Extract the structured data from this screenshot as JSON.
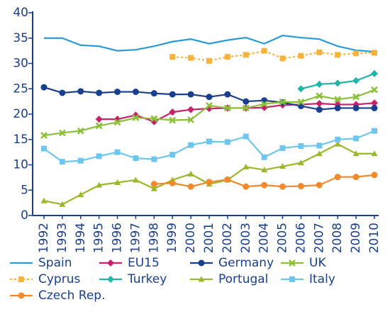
{
  "chart_data": {
    "type": "line",
    "categories": [
      "1992",
      "1993",
      "1994",
      "1995",
      "1996",
      "1997",
      "1998",
      "1999",
      "2000",
      "2001",
      "2002",
      "2003",
      "2004",
      "2005",
      "2006",
      "2007",
      "2008",
      "2009",
      "2010"
    ],
    "ylim": [
      0,
      40
    ],
    "yticks": [
      0,
      5,
      10,
      15,
      20,
      25,
      30,
      35,
      40
    ],
    "axis_color": "#1a3f8f",
    "series": [
      {
        "name": "Spain",
        "color": "#2b9ad6",
        "marker": "none",
        "dash": "solid",
        "values": [
          35,
          35,
          33.6,
          33.4,
          32.5,
          32.7,
          33.4,
          34.3,
          34.8,
          33.9,
          34.6,
          35.1,
          33.9,
          35.5,
          35.1,
          34.8,
          33.4,
          32.6,
          32.3
        ]
      },
      {
        "name": "EU15",
        "color": "#c8206a",
        "marker": "diamond",
        "dash": "solid",
        "values": [
          null,
          null,
          null,
          19,
          19,
          19.8,
          18.5,
          20.4,
          20.9,
          21.1,
          21.2,
          21.2,
          21.3,
          21.8,
          21.9,
          22.1,
          21.9,
          21.9,
          22.2
        ]
      },
      {
        "name": "Germany",
        "color": "#1a3f8f",
        "marker": "circle",
        "dash": "solid",
        "values": [
          25.3,
          24.2,
          24.5,
          24.2,
          24.4,
          24.4,
          24.1,
          23.9,
          23.9,
          23.4,
          23.9,
          22.5,
          22.7,
          22.3,
          21.6,
          20.9,
          21.2,
          21.2,
          21.2
        ]
      },
      {
        "name": "UK",
        "color": "#8cbf3a",
        "marker": "x",
        "dash": "solid",
        "values": [
          15.8,
          16.3,
          16.7,
          17.7,
          18.4,
          19.3,
          19.1,
          18.8,
          18.9,
          21.7,
          21.2,
          21.2,
          22,
          22.4,
          22.4,
          23.6,
          22.9,
          23.4,
          24.8
        ]
      },
      {
        "name": "Cyprus",
        "color": "#f6b23a",
        "marker": "square",
        "dash": "dotted",
        "values": [
          null,
          null,
          null,
          null,
          null,
          null,
          null,
          31.3,
          31.1,
          30.5,
          31.3,
          31.7,
          32.5,
          31,
          31.5,
          32.2,
          31.7,
          32,
          32.1
        ]
      },
      {
        "name": "Turkey",
        "color": "#1fb5a8",
        "marker": "diamond",
        "dash": "solid",
        "values": [
          null,
          null,
          null,
          null,
          null,
          null,
          null,
          null,
          null,
          null,
          null,
          null,
          null,
          null,
          25,
          25.9,
          26.1,
          26.6,
          28
        ]
      },
      {
        "name": "Portugal",
        "color": "#9ab828",
        "marker": "triangle",
        "dash": "solid",
        "values": [
          2.9,
          2.2,
          4.1,
          6,
          6.5,
          7,
          5.3,
          7,
          8.2,
          6.2,
          7,
          9.6,
          9,
          9.7,
          10.4,
          12.2,
          14.1,
          12.2,
          12.2
        ]
      },
      {
        "name": "Italy",
        "color": "#6ec6ee",
        "marker": "square",
        "dash": "solid",
        "values": [
          13.2,
          10.6,
          10.8,
          11.7,
          12.5,
          11.3,
          11.1,
          12,
          13.9,
          14.6,
          14.5,
          15.6,
          11.5,
          13.3,
          13.7,
          13.8,
          15,
          15.2,
          16.7
        ]
      },
      {
        "name": "Czech Rep.",
        "color": "#f08a2c",
        "marker": "circle",
        "dash": "solid",
        "values": [
          null,
          null,
          null,
          null,
          null,
          null,
          6.2,
          6.4,
          5.7,
          6.6,
          7.1,
          5.7,
          6,
          5.7,
          5.8,
          6,
          7.6,
          7.6,
          8
        ]
      }
    ]
  }
}
